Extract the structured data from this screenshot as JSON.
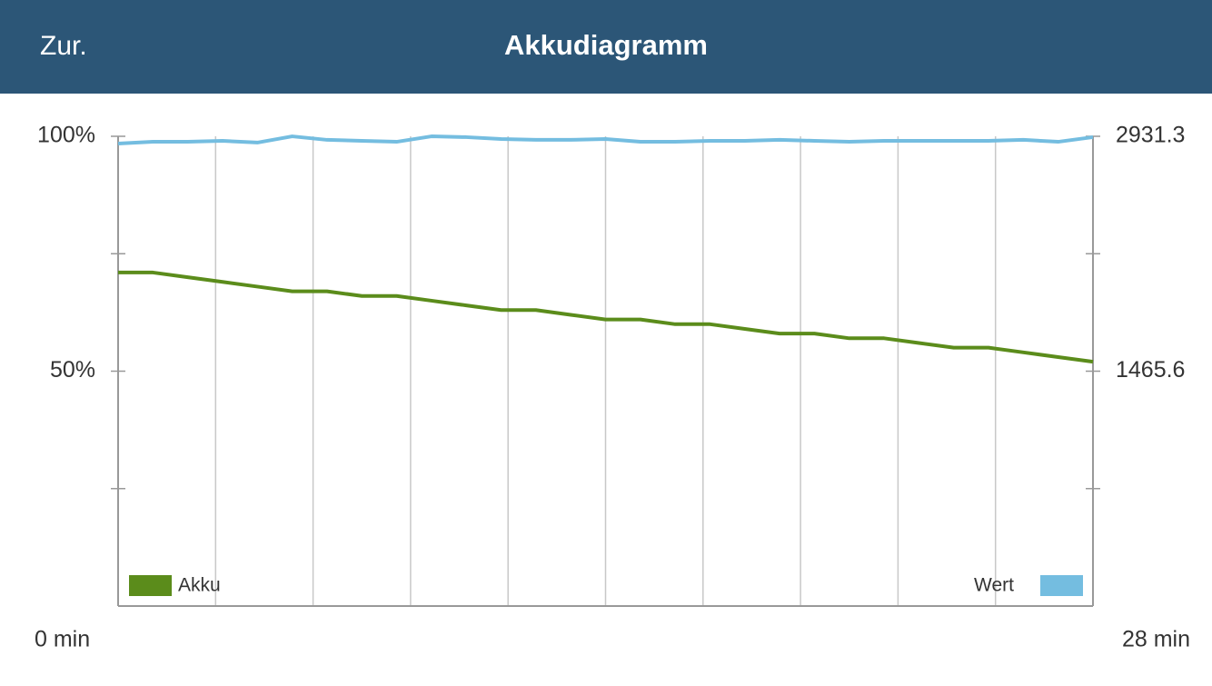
{
  "header": {
    "back": "Zur.",
    "title": "Akkudiagramm"
  },
  "chart_data": {
    "type": "line",
    "x": [
      0,
      1,
      2,
      3,
      4,
      5,
      6,
      7,
      8,
      9,
      10,
      11,
      12,
      13,
      14,
      15,
      16,
      17,
      18,
      19,
      20,
      21,
      22,
      23,
      24,
      25,
      26,
      27,
      28
    ],
    "xlim": [
      0,
      28
    ],
    "xticks": [
      {
        "value": 0,
        "label": "0 min"
      },
      {
        "value": 2.8,
        "label": null
      },
      {
        "value": 5.6,
        "label": null
      },
      {
        "value": 8.4,
        "label": null
      },
      {
        "value": 11.2,
        "label": null
      },
      {
        "value": 14,
        "label": null
      },
      {
        "value": 16.8,
        "label": null
      },
      {
        "value": 19.6,
        "label": null
      },
      {
        "value": 22.4,
        "label": null
      },
      {
        "value": 25.2,
        "label": null
      },
      {
        "value": 28,
        "label": "28 min"
      }
    ],
    "ylim": [
      0,
      100
    ],
    "yticks": [
      {
        "value": 25,
        "label": null
      },
      {
        "value": 50,
        "label": "50%"
      },
      {
        "value": 75,
        "label": null
      },
      {
        "value": 100,
        "label": "100%"
      }
    ],
    "y2lim": [
      0,
      2931.3
    ],
    "y2ticks": [
      {
        "value": 732.825,
        "label": null
      },
      1465.6,
      {
        "value": 2198.475,
        "label": null
      },
      2931.3
    ],
    "grid": true,
    "series": [
      {
        "name": "Akku",
        "color": "#5b8c1b",
        "values": [
          71,
          71,
          70,
          69,
          68,
          67,
          67,
          66,
          66,
          65,
          64,
          63,
          63,
          62,
          61,
          61,
          60,
          60,
          59,
          58,
          58,
          57,
          57,
          56,
          55,
          55,
          54,
          53,
          52
        ]
      },
      {
        "name": "Wert",
        "color": "#74bde0",
        "axis": "y2",
        "values": [
          2886,
          2897,
          2897,
          2903,
          2892,
          2931,
          2909,
          2903,
          2897,
          2931,
          2926,
          2914,
          2909,
          2909,
          2914,
          2897,
          2897,
          2903,
          2903,
          2909,
          2903,
          2897,
          2903,
          2903,
          2903,
          2903,
          2909,
          2897,
          2926
        ]
      }
    ]
  }
}
